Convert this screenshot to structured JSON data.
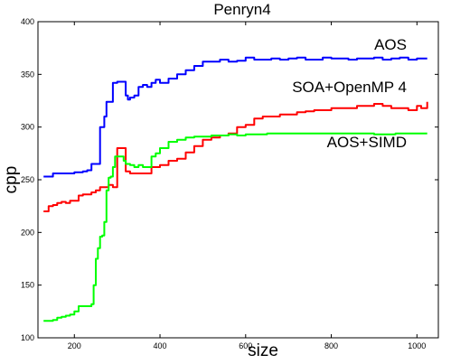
{
  "chart_data": {
    "type": "line",
    "title": "Penryn4",
    "xlabel": "size",
    "ylabel": "cpp",
    "xlim": [
      115,
      1050
    ],
    "ylim": [
      100,
      400
    ],
    "xticks": [
      200,
      400,
      600,
      800,
      1000
    ],
    "yticks": [
      100,
      150,
      200,
      250,
      300,
      350,
      400
    ],
    "grid": false,
    "legend": "inline labels",
    "series": [
      {
        "name": "AOS",
        "color": "#0000ff",
        "x": [
          128,
          140,
          150,
          160,
          170,
          180,
          190,
          200,
          210,
          220,
          230,
          240,
          250,
          260,
          265,
          270,
          275,
          280,
          290,
          300,
          310,
          320,
          325,
          330,
          340,
          350,
          360,
          370,
          380,
          390,
          400,
          410,
          420,
          440,
          460,
          480,
          500,
          520,
          540,
          560,
          580,
          600,
          620,
          640,
          660,
          680,
          700,
          720,
          740,
          760,
          780,
          800,
          820,
          840,
          860,
          880,
          900,
          920,
          940,
          960,
          980,
          1000,
          1024
        ],
        "values": [
          253,
          253,
          256,
          256,
          256,
          256,
          256,
          257,
          257,
          258,
          259,
          265,
          265,
          300,
          300,
          310,
          324,
          324,
          342,
          343,
          343,
          330,
          326,
          328,
          330,
          338,
          340,
          338,
          342,
          345,
          342,
          342,
          346,
          350,
          354,
          358,
          362,
          362,
          364,
          362,
          363,
          366,
          364,
          364,
          365,
          364,
          365,
          366,
          364,
          364,
          366,
          365,
          365,
          364,
          365,
          365,
          366,
          364,
          365,
          366,
          364,
          365,
          365
        ]
      },
      {
        "name": "SOA+OpenMP 4",
        "color": "#ff0000",
        "x": [
          128,
          140,
          150,
          160,
          170,
          180,
          190,
          200,
          210,
          220,
          230,
          240,
          250,
          260,
          270,
          280,
          290,
          300,
          310,
          320,
          330,
          340,
          350,
          360,
          370,
          380,
          400,
          420,
          440,
          460,
          480,
          500,
          520,
          540,
          560,
          580,
          600,
          620,
          640,
          660,
          680,
          700,
          720,
          740,
          760,
          780,
          800,
          820,
          840,
          860,
          880,
          900,
          920,
          940,
          960,
          980,
          1000,
          1010,
          1024
        ],
        "values": [
          220,
          225,
          226,
          228,
          229,
          228,
          230,
          230,
          235,
          236,
          236,
          238,
          240,
          243,
          243,
          245,
          243,
          280,
          280,
          258,
          256,
          256,
          256,
          256,
          256,
          262,
          264,
          268,
          270,
          276,
          282,
          288,
          290,
          292,
          294,
          300,
          302,
          308,
          310,
          310,
          312,
          312,
          314,
          315,
          316,
          316,
          318,
          318,
          318,
          320,
          320,
          322,
          320,
          318,
          318,
          316,
          320,
          318,
          324
        ]
      },
      {
        "name": "AOS+SIMD",
        "color": "#00ff00",
        "x": [
          128,
          140,
          150,
          160,
          170,
          180,
          190,
          200,
          210,
          220,
          230,
          240,
          245,
          250,
          255,
          260,
          265,
          270,
          275,
          280,
          285,
          290,
          295,
          300,
          305,
          310,
          315,
          320,
          330,
          340,
          350,
          360,
          370,
          380,
          390,
          400,
          420,
          440,
          460,
          480,
          500,
          520,
          540,
          560,
          580,
          600,
          650,
          700,
          750,
          800,
          850,
          900,
          950,
          1000,
          1024
        ],
        "values": [
          116,
          116,
          117,
          119,
          120,
          121,
          122,
          125,
          130,
          130,
          130,
          132,
          150,
          175,
          185,
          196,
          197,
          210,
          240,
          252,
          253,
          262,
          272,
          272,
          272,
          272,
          268,
          265,
          264,
          262,
          264,
          262,
          262,
          272,
          275,
          280,
          286,
          288,
          290,
          291,
          291,
          292,
          292,
          293,
          292,
          293,
          294,
          294,
          294,
          294,
          294,
          293,
          294,
          294,
          294
        ]
      }
    ]
  }
}
